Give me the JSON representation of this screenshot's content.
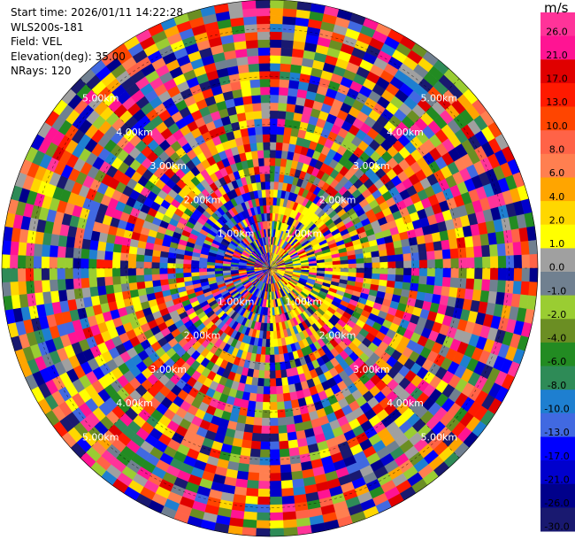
{
  "info": {
    "start_time": "Start time: 2026/01/11 14:22:28",
    "instrument": "WLS200s-181",
    "field": "Field: VEL",
    "elevation": "Elevation(deg): 35.00",
    "nrays": "NRays: 120"
  },
  "colorbar": {
    "units": "m/s",
    "ticks": [
      "26.0",
      "21.0",
      "17.0",
      "13.0",
      "10.0",
      "8.0",
      "6.0",
      "4.0",
      "2.0",
      "1.0",
      "0.0",
      "-1.0",
      "-2.0",
      "-4.0",
      "-6.0",
      "-8.0",
      "-10.0",
      "-13.0",
      "-17.0",
      "-21.0",
      "-26.0",
      "-30.0"
    ],
    "colors": [
      "#ff3399",
      "#ff1493",
      "#e00000",
      "#ff1a00",
      "#ff4500",
      "#ff6347",
      "#ff7f50",
      "#ffa500",
      "#ffd700",
      "#ffff00",
      "#a0a0a0",
      "#708090",
      "#9acd32",
      "#6b8e23",
      "#228b22",
      "#2e8b57",
      "#1e7fd0",
      "#4169e1",
      "#0000ff",
      "#0000cd",
      "#00008b",
      "#191970"
    ]
  },
  "chart_data": {
    "type": "heatmap",
    "projection": "polar-ppi",
    "field": "VEL",
    "units": "m/s",
    "n_rays": 120,
    "elevation_deg": 35.0,
    "range_rings_km": [
      1,
      2,
      3,
      4,
      5
    ],
    "range_ring_labels": [
      "1.00km",
      "2.00km",
      "3.00km",
      "4.00km",
      "5.00km"
    ],
    "max_range_km": 5.6,
    "colorbar_range": [
      -30.0,
      26.0
    ]
  }
}
